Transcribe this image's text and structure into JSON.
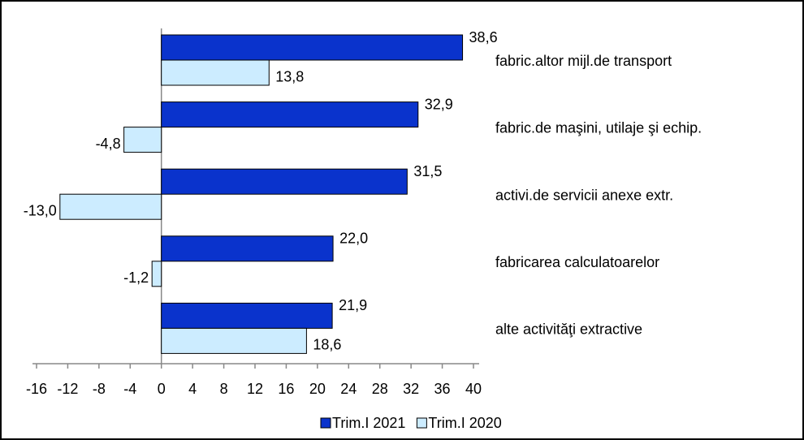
{
  "chart_data": {
    "type": "hbar",
    "categories": [
      "fabric.altor mijl.de transport",
      "fabric.de maşini, utilaje şi echip.",
      "activi.de servicii anexe extr.",
      "fabricarea calculatoarelor",
      "alte activităţi extractive"
    ],
    "series": [
      {
        "name": "Trim.I 2021",
        "color": "#0a33cc",
        "values": [
          38.6,
          32.9,
          31.5,
          22.0,
          21.9
        ],
        "value_labels": [
          "38,6",
          "32,9",
          "31,5",
          "22,0",
          "21,9"
        ]
      },
      {
        "name": "Trim.I 2020",
        "color": "#ccecff",
        "values": [
          13.8,
          -4.8,
          -13.0,
          -1.2,
          18.6
        ],
        "value_labels": [
          "13,8",
          "-4,8",
          "-13,0",
          "-1,2",
          "18,6"
        ]
      }
    ],
    "xlim": [
      -16,
      40
    ],
    "xticks": [
      -16,
      -12,
      -8,
      -4,
      0,
      4,
      8,
      12,
      16,
      20,
      24,
      28,
      32,
      36,
      40
    ],
    "legend": "bottom"
  }
}
